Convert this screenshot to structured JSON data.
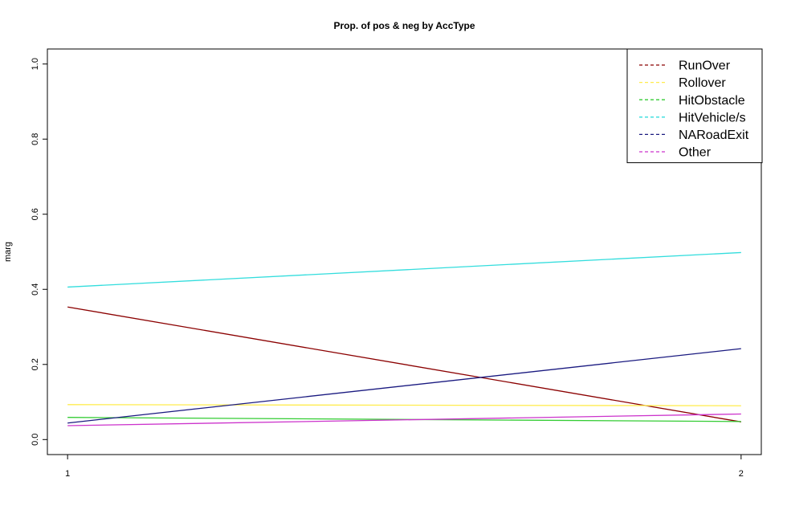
{
  "chart_data": {
    "type": "line",
    "title": "Prop. of pos & neg by AccType",
    "xlabel": "",
    "ylabel": "marg",
    "x": [
      1,
      2
    ],
    "x_ticks": [
      "1",
      "2"
    ],
    "xlim": [
      0.97,
      2.03
    ],
    "ylim": [
      -0.04,
      1.04
    ],
    "y_ticks": [
      "0.0",
      "0.2",
      "0.4",
      "0.6",
      "0.8",
      "1.0"
    ],
    "grid": false,
    "legend_position": "top-right",
    "series": [
      {
        "name": "RunOver",
        "color": "#8B0000",
        "values": [
          0.353,
          0.047
        ]
      },
      {
        "name": "Rollover",
        "color": "#FFEC4D",
        "values": [
          0.093,
          0.09
        ]
      },
      {
        "name": "HitObstacle",
        "color": "#33CC33",
        "values": [
          0.059,
          0.048
        ]
      },
      {
        "name": "HitVehicle/s",
        "color": "#33DDDD",
        "values": [
          0.406,
          0.498
        ]
      },
      {
        "name": "NARoadExit",
        "color": "#1A1A80",
        "values": [
          0.044,
          0.242
        ]
      },
      {
        "name": "Other",
        "color": "#CC33CC",
        "values": [
          0.037,
          0.068
        ]
      }
    ]
  }
}
